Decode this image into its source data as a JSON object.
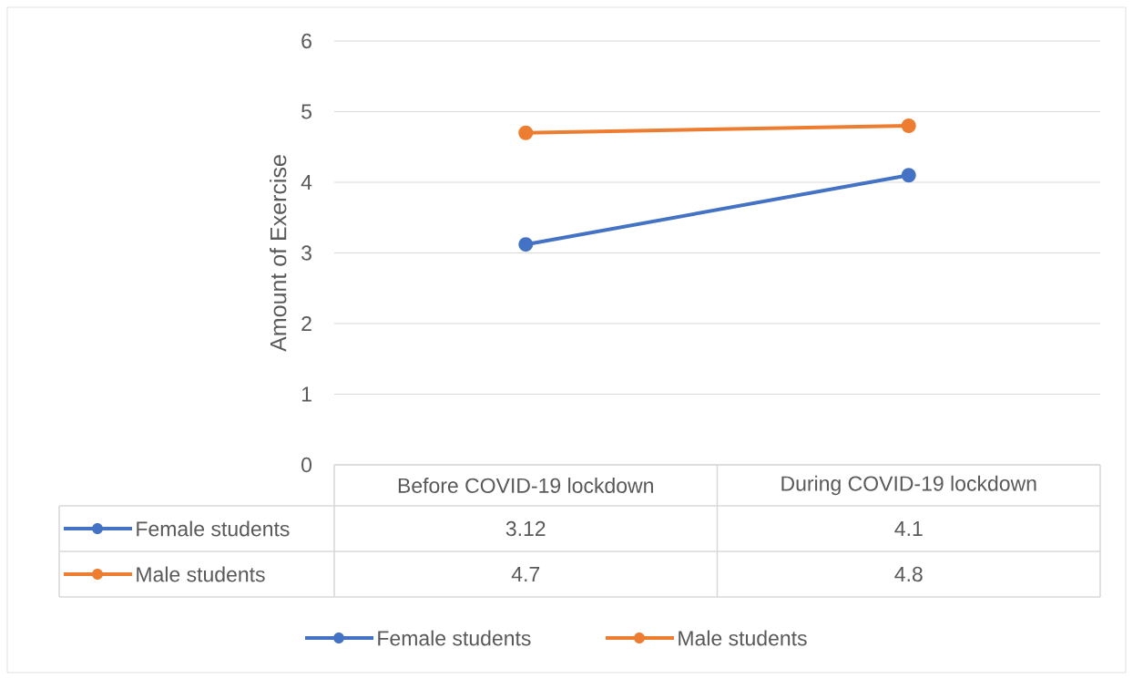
{
  "chart_data": {
    "type": "line",
    "ylabel": "Amount of Exercise",
    "categories": [
      "Before COVID-19 lockdown",
      "During COVID-19 lockdown"
    ],
    "series": [
      {
        "name": "Female students",
        "color": "#4472c4",
        "values": [
          3.12,
          4.1
        ]
      },
      {
        "name": "Male students",
        "color": "#ed7d31",
        "values": [
          4.7,
          4.8
        ]
      }
    ],
    "ylim": [
      0,
      6
    ],
    "yticks": [
      0,
      1,
      2,
      3,
      4,
      5,
      6
    ],
    "grid": "y",
    "legend": "bottom",
    "marker": "circle",
    "line_style": "solid",
    "data_labels": true
  }
}
